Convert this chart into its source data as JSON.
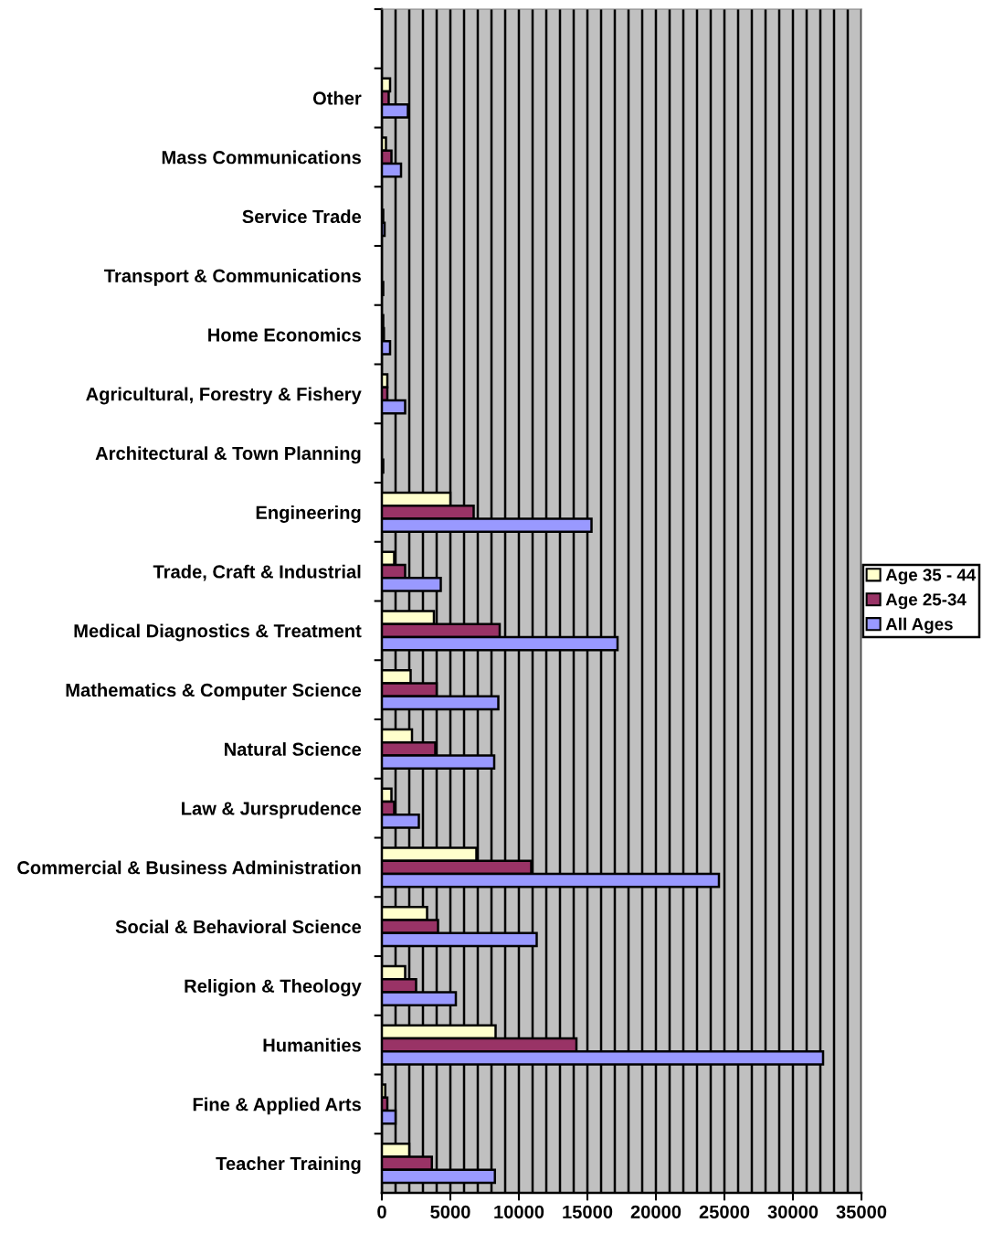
{
  "chart_data": {
    "type": "bar",
    "orientation": "horizontal",
    "categories": [
      null,
      "Other",
      "Mass Communications",
      "Service Trade",
      "Transport & Communications",
      "Home Economics",
      "Agricultural, Forestry & Fishery",
      "Architectural & Town Planning",
      "Engineering",
      "Trade, Craft & Industrial",
      "Medical Diagnostics & Treatment",
      "Mathematics & Computer Science",
      "Natural Science",
      "Law & Jursprudence",
      "Commercial & Business Administration",
      "Social & Behavioral Science",
      "Religion & Theology",
      "Humanities",
      "Fine & Applied Arts",
      "Teacher Training"
    ],
    "series": [
      {
        "name": "Age 35 - 44",
        "color": "#ffffcc",
        "values": [
          null,
          600,
          300,
          null,
          0,
          100,
          400,
          0,
          5000,
          900,
          3800,
          2100,
          2200,
          700,
          6900,
          3300,
          1700,
          8300,
          250,
          2000
        ]
      },
      {
        "name": "Age 25-34",
        "color": "#993366",
        "values": [
          null,
          500,
          700,
          100,
          0,
          150,
          400,
          0,
          6700,
          1700,
          8600,
          4000,
          3900,
          900,
          10900,
          4100,
          2500,
          14200,
          400,
          3650
        ]
      },
      {
        "name": "All Ages",
        "color": "#9999ff",
        "values": [
          null,
          1900,
          1400,
          200,
          100,
          600,
          1700,
          100,
          15300,
          4300,
          17200,
          8500,
          8200,
          2700,
          24600,
          11300,
          5400,
          32200,
          1000,
          8250
        ]
      }
    ],
    "xlim": [
      0,
      35000
    ],
    "xticks": [
      0,
      {
        "value": 1000,
        "label": null
      },
      {
        "value": 2000,
        "label": null
      },
      {
        "value": 3000,
        "label": null
      },
      {
        "value": 4000,
        "label": null
      },
      5000,
      {
        "value": 6000,
        "label": null
      },
      {
        "value": 7000,
        "label": null
      },
      {
        "value": 8000,
        "label": null
      },
      {
        "value": 9000,
        "label": null
      },
      10000,
      {
        "value": 11000,
        "label": null
      },
      {
        "value": 12000,
        "label": null
      },
      {
        "value": 13000,
        "label": null
      },
      {
        "value": 14000,
        "label": null
      },
      15000,
      {
        "value": 16000,
        "label": null
      },
      {
        "value": 17000,
        "label": null
      },
      {
        "value": 18000,
        "label": null
      },
      {
        "value": 19000,
        "label": null
      },
      20000,
      {
        "value": 21000,
        "label": null
      },
      {
        "value": 22000,
        "label": null
      },
      {
        "value": 23000,
        "label": null
      },
      {
        "value": 24000,
        "label": null
      },
      25000,
      {
        "value": 26000,
        "label": null
      },
      {
        "value": 27000,
        "label": null
      },
      {
        "value": 28000,
        "label": null
      },
      {
        "value": 29000,
        "label": null
      },
      30000,
      {
        "value": 31000,
        "label": null
      },
      {
        "value": 32000,
        "label": null
      },
      {
        "value": 33000,
        "label": null
      },
      {
        "value": 34000,
        "label": null
      },
      35000
    ],
    "grid": "x",
    "legend": "right"
  }
}
